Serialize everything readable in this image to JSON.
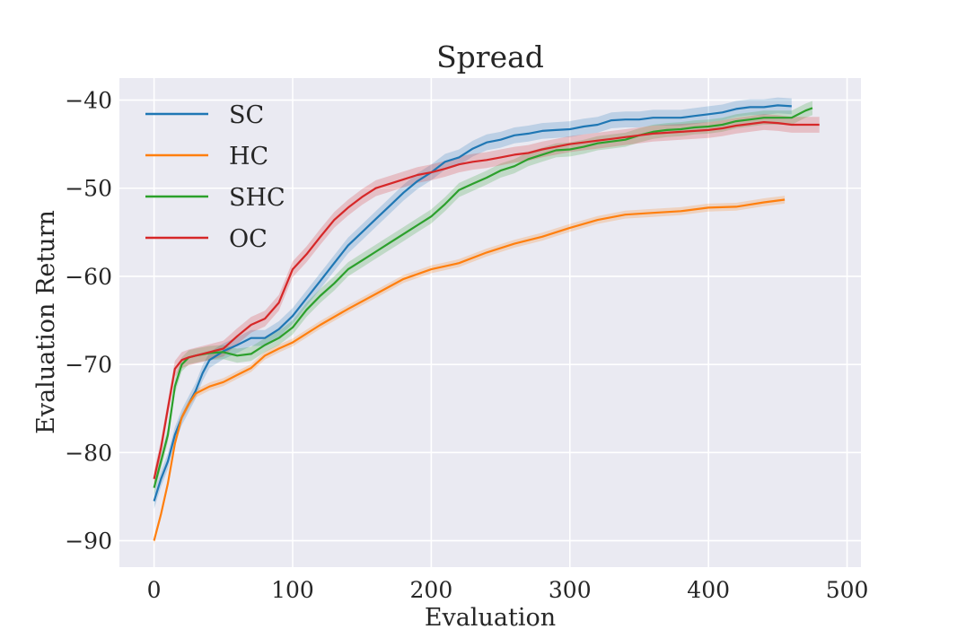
{
  "chart_data": {
    "type": "line",
    "title": "Spread",
    "xlabel": "Evaluation",
    "ylabel": "Evaluation Return",
    "xlim": [
      -25,
      510
    ],
    "ylim": [
      -93,
      -37.5
    ],
    "xticks": [
      0,
      100,
      200,
      300,
      400,
      500
    ],
    "yticks": [
      -90,
      -80,
      -70,
      -60,
      -50,
      -40
    ],
    "xtick_labels": [
      "0",
      "100",
      "200",
      "300",
      "400",
      "500"
    ],
    "ytick_labels": [
      "−90",
      "−80",
      "−70",
      "−60",
      "−50",
      "−40"
    ],
    "grid": true,
    "legend_position": "top-left",
    "series": [
      {
        "name": "SC",
        "color": "#1f77b4",
        "x": [
          0,
          5,
          10,
          15,
          20,
          25,
          30,
          35,
          40,
          50,
          60,
          70,
          80,
          90,
          100,
          110,
          120,
          130,
          140,
          150,
          160,
          170,
          180,
          190,
          200,
          210,
          220,
          230,
          240,
          250,
          260,
          270,
          280,
          290,
          300,
          310,
          320,
          330,
          340,
          350,
          360,
          370,
          380,
          390,
          400,
          410,
          420,
          430,
          440,
          450,
          460
        ],
        "y": [
          -85.5,
          -83.0,
          -81.0,
          -78.0,
          -76.0,
          -74.5,
          -73.0,
          -71.0,
          -69.5,
          -68.5,
          -67.8,
          -67.0,
          -67.0,
          -66.0,
          -64.5,
          -62.5,
          -60.5,
          -58.5,
          -56.5,
          -55.0,
          -53.5,
          -52.0,
          -50.5,
          -49.2,
          -48.2,
          -47.0,
          -46.5,
          -45.5,
          -44.8,
          -44.5,
          -44.0,
          -43.8,
          -43.5,
          -43.4,
          -43.3,
          -43.0,
          -42.8,
          -42.3,
          -42.2,
          -42.2,
          -42.0,
          -42.0,
          -42.0,
          -41.8,
          -41.6,
          -41.4,
          -41.0,
          -40.8,
          -40.8,
          -40.6,
          -40.7
        ],
        "band": 0.9
      },
      {
        "name": "HC",
        "color": "#ff7f0e",
        "x": [
          0,
          5,
          10,
          15,
          20,
          25,
          30,
          40,
          50,
          60,
          70,
          80,
          90,
          100,
          120,
          140,
          160,
          180,
          200,
          220,
          240,
          260,
          280,
          300,
          320,
          340,
          360,
          380,
          400,
          420,
          440,
          455
        ],
        "y": [
          -90.0,
          -87.0,
          -83.5,
          -79.0,
          -76.0,
          -74.5,
          -73.3,
          -72.5,
          -72.0,
          -71.2,
          -70.4,
          -69.0,
          -68.2,
          -67.5,
          -65.5,
          -63.7,
          -62.0,
          -60.3,
          -59.2,
          -58.5,
          -57.3,
          -56.3,
          -55.5,
          -54.5,
          -53.6,
          -53.0,
          -52.8,
          -52.6,
          -52.2,
          -52.1,
          -51.6,
          -51.3
        ],
        "band": 0.45
      },
      {
        "name": "SHC",
        "color": "#2ca02c",
        "x": [
          0,
          5,
          10,
          15,
          20,
          25,
          30,
          40,
          50,
          60,
          70,
          80,
          90,
          100,
          110,
          120,
          130,
          140,
          150,
          160,
          170,
          180,
          190,
          200,
          210,
          220,
          230,
          240,
          250,
          260,
          270,
          280,
          290,
          300,
          310,
          320,
          330,
          340,
          350,
          360,
          370,
          380,
          390,
          400,
          410,
          420,
          430,
          440,
          450,
          460,
          470,
          475
        ],
        "y": [
          -84.0,
          -81.0,
          -78.0,
          -72.5,
          -70.0,
          -69.2,
          -69.0,
          -68.7,
          -68.6,
          -69.0,
          -68.8,
          -67.8,
          -67.0,
          -65.8,
          -63.8,
          -62.2,
          -60.8,
          -59.2,
          -58.2,
          -57.2,
          -56.2,
          -55.2,
          -54.2,
          -53.2,
          -51.8,
          -50.2,
          -49.5,
          -48.8,
          -48.0,
          -47.5,
          -46.7,
          -46.2,
          -45.7,
          -45.6,
          -45.3,
          -44.9,
          -44.7,
          -44.5,
          -44.0,
          -43.6,
          -43.4,
          -43.3,
          -43.1,
          -43.0,
          -42.8,
          -42.4,
          -42.2,
          -42.0,
          -42.0,
          -42.0,
          -41.2,
          -40.9
        ],
        "band": 0.8
      },
      {
        "name": "OC",
        "color": "#d62728",
        "x": [
          0,
          5,
          10,
          15,
          20,
          25,
          30,
          40,
          50,
          60,
          70,
          80,
          90,
          100,
          110,
          120,
          130,
          140,
          150,
          160,
          170,
          180,
          190,
          200,
          210,
          220,
          230,
          240,
          250,
          260,
          270,
          280,
          290,
          300,
          310,
          320,
          330,
          340,
          350,
          360,
          370,
          380,
          390,
          400,
          410,
          420,
          430,
          440,
          450,
          460,
          470,
          480
        ],
        "y": [
          -83.0,
          -79.5,
          -75.0,
          -70.5,
          -69.5,
          -69.2,
          -69.0,
          -68.6,
          -68.2,
          -66.8,
          -65.5,
          -64.8,
          -63.0,
          -59.2,
          -57.5,
          -55.5,
          -53.6,
          -52.2,
          -51.0,
          -50.0,
          -49.5,
          -49.0,
          -48.5,
          -48.2,
          -47.8,
          -47.3,
          -47.0,
          -46.8,
          -46.5,
          -46.2,
          -46.0,
          -45.6,
          -45.3,
          -45.0,
          -44.8,
          -44.6,
          -44.4,
          -44.2,
          -44.0,
          -43.8,
          -43.7,
          -43.6,
          -43.5,
          -43.4,
          -43.2,
          -42.9,
          -42.7,
          -42.5,
          -42.6,
          -42.8,
          -42.8,
          -42.8
        ],
        "band": 0.9
      }
    ]
  }
}
